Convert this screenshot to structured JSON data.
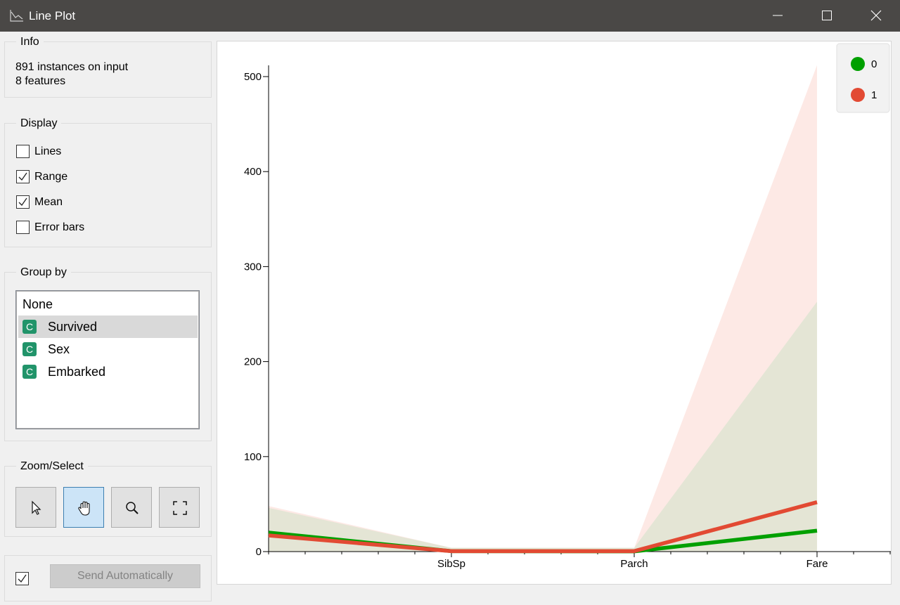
{
  "window": {
    "title": "Line Plot",
    "controls": [
      "minimize",
      "maximize",
      "close"
    ]
  },
  "sidebar": {
    "info": {
      "title": "Info",
      "lines": [
        "891 instances on input",
        "8 features"
      ]
    },
    "display": {
      "title": "Display",
      "options": [
        {
          "label": "Lines",
          "checked": false
        },
        {
          "label": "Range",
          "checked": true
        },
        {
          "label": "Mean",
          "checked": true
        },
        {
          "label": "Error bars",
          "checked": false
        }
      ]
    },
    "group_by": {
      "title": "Group by",
      "items": [
        {
          "label": "None",
          "type": "",
          "selected": false
        },
        {
          "label": "Survived",
          "type": "C",
          "selected": true
        },
        {
          "label": "Sex",
          "type": "C",
          "selected": false
        },
        {
          "label": "Embarked",
          "type": "C",
          "selected": false
        }
      ]
    },
    "zoom_select": {
      "title": "Zoom/Select",
      "tools": [
        {
          "name": "select",
          "icon": "pointer-icon",
          "active": false
        },
        {
          "name": "pan",
          "icon": "hand-icon",
          "active": true
        },
        {
          "name": "zoom",
          "icon": "magnifier-icon",
          "active": false
        },
        {
          "name": "reset",
          "icon": "fit-icon",
          "active": false
        }
      ]
    },
    "send": {
      "auto_checked": true,
      "button_label": "Send Automatically"
    }
  },
  "colors": {
    "group0": "#00a000",
    "group1": "#e24a33",
    "range0": "#e4e5d5",
    "range1": "#fde9e5"
  },
  "chart_data": {
    "type": "line",
    "categories": [
      "",
      "SibSp",
      "Parch",
      "Fare"
    ],
    "yticks": [
      0,
      100,
      200,
      300,
      400,
      500
    ],
    "ylim": [
      0,
      512
    ],
    "grid": false,
    "legend": {
      "placement": "top-right",
      "entries": [
        "0",
        "1"
      ]
    },
    "series": [
      {
        "name": "0",
        "mean": [
          20,
          0.5,
          0.3,
          22
        ],
        "range_min": [
          0,
          0,
          0,
          0
        ],
        "range_max": [
          46,
          4,
          4,
          263
        ]
      },
      {
        "name": "1",
        "mean": [
          17,
          0.5,
          0.5,
          52
        ],
        "range_min": [
          0,
          0,
          0,
          0
        ],
        "range_max": [
          48,
          4,
          4,
          512
        ]
      }
    ]
  }
}
